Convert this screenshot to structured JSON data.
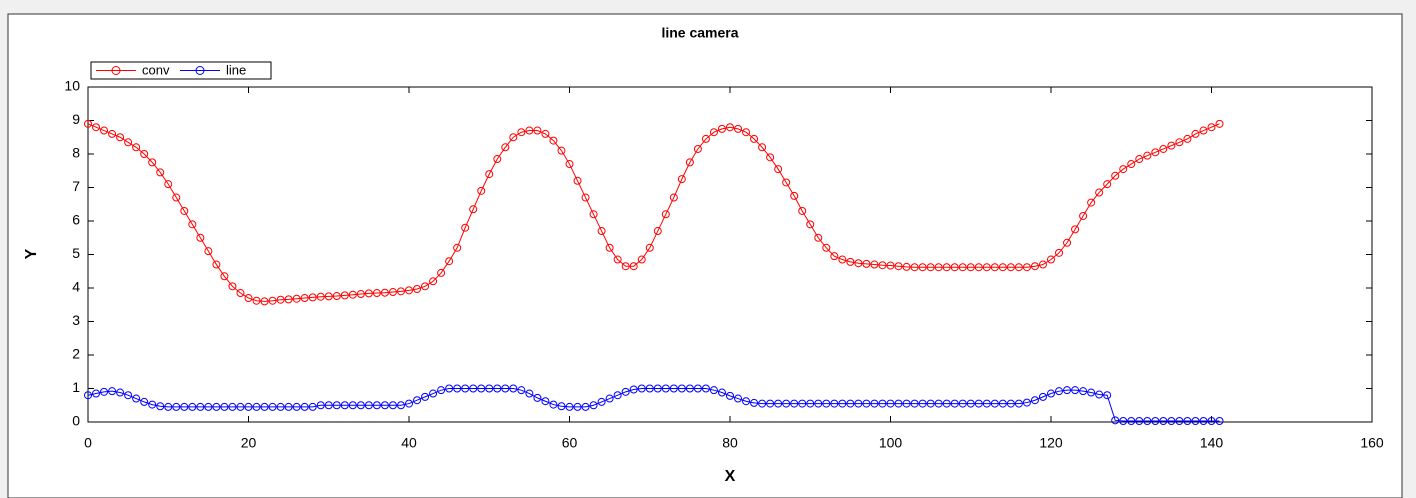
{
  "chart_data": {
    "type": "line",
    "title": "line camera",
    "x_label": "X",
    "y_label": "Y",
    "x": [
      0,
      1,
      2,
      3,
      4,
      5,
      6,
      7,
      8,
      9,
      10,
      11,
      12,
      13,
      14,
      15,
      16,
      17,
      18,
      19,
      20,
      21,
      22,
      23,
      24,
      25,
      26,
      27,
      28,
      29,
      30,
      31,
      32,
      33,
      34,
      35,
      36,
      37,
      38,
      39,
      40,
      41,
      42,
      43,
      44,
      45,
      46,
      47,
      48,
      49,
      50,
      51,
      52,
      53,
      54,
      55,
      56,
      57,
      58,
      59,
      60,
      61,
      62,
      63,
      64,
      65,
      66,
      67,
      68,
      69,
      70,
      71,
      72,
      73,
      74,
      75,
      76,
      77,
      78,
      79,
      80,
      81,
      82,
      83,
      84,
      85,
      86,
      87,
      88,
      89,
      90,
      91,
      92,
      93,
      94,
      95,
      96,
      97,
      98,
      99,
      100,
      101,
      102,
      103,
      104,
      105,
      106,
      107,
      108,
      109,
      110,
      111,
      112,
      113,
      114,
      115,
      116,
      117,
      118,
      119,
      120,
      121,
      122,
      123,
      124,
      125,
      126,
      127,
      128,
      129,
      130,
      131,
      132,
      133,
      134,
      135,
      136,
      137,
      138,
      139,
      140,
      141
    ],
    "series": [
      {
        "name": "conv",
        "color": "#ff0000",
        "values": [
          8.9,
          8.8,
          8.7,
          8.6,
          8.5,
          8.35,
          8.2,
          8.0,
          7.75,
          7.45,
          7.1,
          6.7,
          6.3,
          5.9,
          5.5,
          5.1,
          4.7,
          4.35,
          4.05,
          3.85,
          3.7,
          3.62,
          3.6,
          3.62,
          3.65,
          3.66,
          3.68,
          3.7,
          3.72,
          3.74,
          3.75,
          3.76,
          3.78,
          3.8,
          3.82,
          3.84,
          3.85,
          3.86,
          3.88,
          3.9,
          3.93,
          3.97,
          4.05,
          4.2,
          4.45,
          4.8,
          5.2,
          5.8,
          6.35,
          6.9,
          7.4,
          7.85,
          8.2,
          8.5,
          8.65,
          8.7,
          8.7,
          8.6,
          8.4,
          8.1,
          7.7,
          7.2,
          6.7,
          6.2,
          5.7,
          5.2,
          4.85,
          4.65,
          4.65,
          4.85,
          5.2,
          5.7,
          6.2,
          6.7,
          7.25,
          7.75,
          8.15,
          8.45,
          8.65,
          8.75,
          8.8,
          8.75,
          8.65,
          8.45,
          8.2,
          7.9,
          7.55,
          7.15,
          6.75,
          6.3,
          5.9,
          5.5,
          5.2,
          4.95,
          4.85,
          4.78,
          4.74,
          4.72,
          4.7,
          4.68,
          4.67,
          4.65,
          4.63,
          4.62,
          4.62,
          4.62,
          4.62,
          4.62,
          4.62,
          4.62,
          4.62,
          4.62,
          4.62,
          4.62,
          4.62,
          4.62,
          4.62,
          4.62,
          4.65,
          4.7,
          4.85,
          5.05,
          5.35,
          5.75,
          6.15,
          6.55,
          6.85,
          7.1,
          7.35,
          7.55,
          7.7,
          7.85,
          7.95,
          8.05,
          8.15,
          8.25,
          8.35,
          8.45,
          8.6,
          8.7,
          8.8,
          8.9
        ]
      },
      {
        "name": "line",
        "color": "#0000ff",
        "values": [
          0.8,
          0.85,
          0.9,
          0.92,
          0.88,
          0.8,
          0.7,
          0.6,
          0.52,
          0.47,
          0.45,
          0.45,
          0.45,
          0.45,
          0.45,
          0.45,
          0.45,
          0.45,
          0.45,
          0.45,
          0.45,
          0.45,
          0.45,
          0.45,
          0.45,
          0.45,
          0.45,
          0.45,
          0.45,
          0.5,
          0.5,
          0.5,
          0.5,
          0.5,
          0.5,
          0.5,
          0.5,
          0.5,
          0.5,
          0.5,
          0.55,
          0.65,
          0.75,
          0.85,
          0.95,
          1.0,
          1.0,
          1.0,
          1.0,
          1.0,
          1.0,
          1.0,
          1.0,
          1.0,
          0.95,
          0.85,
          0.72,
          0.62,
          0.52,
          0.47,
          0.45,
          0.45,
          0.45,
          0.5,
          0.6,
          0.7,
          0.8,
          0.9,
          0.97,
          1.0,
          1.0,
          1.0,
          1.0,
          1.0,
          1.0,
          1.0,
          1.0,
          1.0,
          0.95,
          0.88,
          0.78,
          0.7,
          0.62,
          0.57,
          0.55,
          0.55,
          0.55,
          0.55,
          0.55,
          0.55,
          0.55,
          0.55,
          0.55,
          0.55,
          0.55,
          0.55,
          0.55,
          0.55,
          0.55,
          0.55,
          0.55,
          0.55,
          0.55,
          0.55,
          0.55,
          0.55,
          0.55,
          0.55,
          0.55,
          0.55,
          0.55,
          0.55,
          0.55,
          0.55,
          0.55,
          0.55,
          0.55,
          0.58,
          0.65,
          0.75,
          0.85,
          0.92,
          0.95,
          0.95,
          0.92,
          0.88,
          0.82,
          0.8,
          0.05,
          0.03,
          0.03,
          0.03,
          0.03,
          0.03,
          0.03,
          0.03,
          0.03,
          0.03,
          0.03,
          0.03,
          0.03,
          0.03
        ]
      }
    ],
    "xlim": [
      0,
      160
    ],
    "xticks": [
      0,
      20,
      40,
      60,
      80,
      100,
      120,
      140,
      160
    ],
    "ylim": [
      0,
      10
    ],
    "yticks": [
      0,
      1,
      2,
      3,
      4,
      5,
      6,
      7,
      8,
      9,
      10
    ]
  }
}
